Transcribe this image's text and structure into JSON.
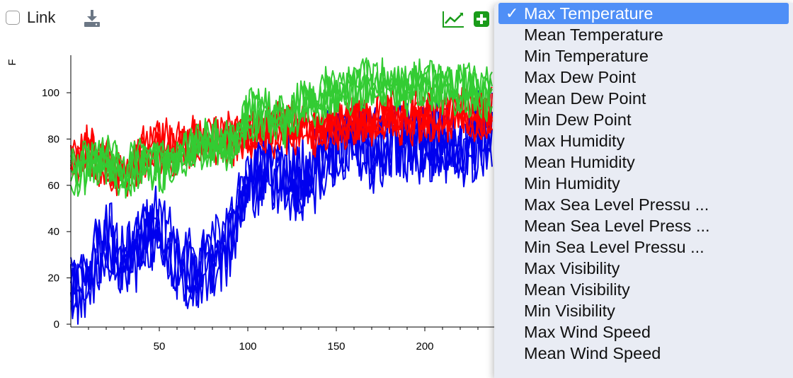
{
  "toolbar": {
    "link_label": "Link",
    "link_checked": false,
    "download_icon": "download-icon",
    "chart_icon": "line-chart-icon",
    "add_icon": "plus-square-icon",
    "accent_color": "#1a9c1a"
  },
  "chart_data": {
    "type": "line",
    "ylabel": "F",
    "xlabel": "",
    "xlim": [
      0,
      240
    ],
    "ylim": [
      0,
      115
    ],
    "x_ticks": [
      50,
      100,
      150,
      200
    ],
    "y_ticks": [
      0,
      20,
      40,
      60,
      80,
      100
    ],
    "grid": false,
    "series": [
      {
        "color": "#ff0000",
        "x": [
          0,
          10,
          20,
          30,
          40,
          50,
          60,
          70,
          80,
          90,
          100,
          110,
          120,
          130,
          140,
          150,
          160,
          170,
          180,
          190,
          200,
          210,
          220,
          230,
          240
        ],
        "values": [
          72,
          74,
          70,
          64,
          74,
          77,
          76,
          78,
          79,
          80,
          81,
          83,
          85,
          85,
          84,
          86,
          88,
          88,
          89,
          89,
          90,
          90,
          91,
          91,
          93
        ]
      },
      {
        "color": "#33cc33",
        "x": [
          0,
          10,
          20,
          30,
          40,
          50,
          60,
          70,
          80,
          90,
          100,
          110,
          120,
          130,
          140,
          150,
          160,
          170,
          180,
          190,
          200,
          210,
          220,
          230,
          240
        ],
        "values": [
          65,
          68,
          71,
          65,
          70,
          68,
          72,
          76,
          78,
          77,
          90,
          92,
          87,
          94,
          98,
          100,
          102,
          103,
          104,
          102,
          104,
          103,
          102,
          101,
          98
        ]
      },
      {
        "color": "#0000ee",
        "x": [
          0,
          10,
          20,
          30,
          40,
          50,
          60,
          70,
          80,
          90,
          100,
          110,
          120,
          130,
          140,
          150,
          160,
          170,
          180,
          190,
          200,
          210,
          220,
          230,
          240
        ],
        "values": [
          18,
          20,
          38,
          24,
          35,
          42,
          28,
          22,
          28,
          38,
          58,
          70,
          62,
          64,
          68,
          80,
          82,
          74,
          78,
          79,
          80,
          78,
          75,
          82,
          85
        ]
      }
    ]
  },
  "menu": {
    "items": [
      {
        "label": "Max Temperature",
        "selected": true
      },
      {
        "label": "Mean Temperature"
      },
      {
        "label": "Min Temperature"
      },
      {
        "label": "Max Dew Point"
      },
      {
        "label": "Mean Dew Point"
      },
      {
        "label": "Min Dew Point"
      },
      {
        "label": "Max Humidity"
      },
      {
        "label": "Mean Humidity"
      },
      {
        "label": "Min Humidity"
      },
      {
        "label": "Max Sea Level Pressu ..."
      },
      {
        "label": "Mean Sea Level Press ..."
      },
      {
        "label": "Min Sea Level Pressu ..."
      },
      {
        "label": "Max Visibility"
      },
      {
        "label": "Mean Visibility"
      },
      {
        "label": "Min Visibility"
      },
      {
        "label": "Max Wind Speed"
      },
      {
        "label": "Mean Wind Speed"
      }
    ],
    "check_mark": "✓"
  }
}
